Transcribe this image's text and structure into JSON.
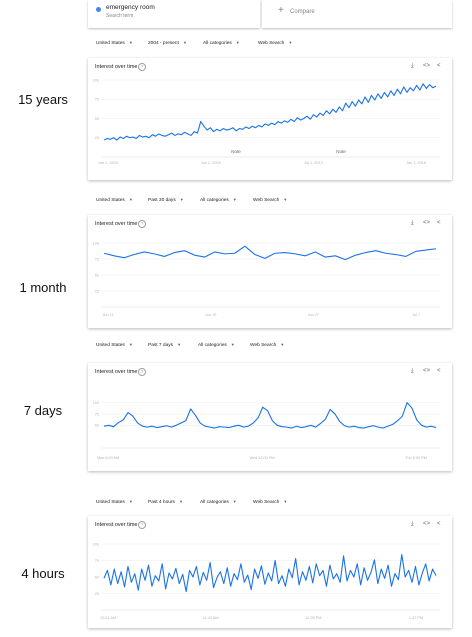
{
  "colors": {
    "series": "#1a73e8",
    "accent_dot": "#4285f4"
  },
  "search_term": {
    "name": "emergency room",
    "subtitle": "Search term",
    "compare_label": "Compare",
    "plus_icon": "plus-icon"
  },
  "panels": [
    {
      "label": "15 years",
      "filters": [
        "United States",
        "2004 - present",
        "All categories",
        "Web Search"
      ],
      "title": "Interest over time",
      "notes": [
        "Note",
        "Note"
      ],
      "y_ticks": [
        "100",
        "75",
        "50",
        "25"
      ],
      "x_ticks": [
        "Jan 1, 2004",
        "Jan 1, 2009",
        "Jul 1, 2013",
        "Jan 1, 2018"
      ]
    },
    {
      "label": "1 month",
      "filters": [
        "United States",
        "Past 30 days",
        "All categories",
        "Web Search"
      ],
      "title": "Interest over time",
      "y_ticks": [
        "100",
        "75",
        "50",
        "25"
      ],
      "x_ticks": [
        "Jun 11",
        "Jun 19",
        "Jun 27",
        "Jul 7"
      ]
    },
    {
      "label": "7 days",
      "filters": [
        "United States",
        "Past 7 days",
        "All categories",
        "Web Search"
      ],
      "title": "Interest over time",
      "y_ticks": [
        "100",
        "75",
        "50"
      ],
      "x_ticks": [
        "Mon 6:00 AM",
        "Wed 12:00 PM",
        "Thu 5:00 PM"
      ]
    },
    {
      "label": "4 hours",
      "filters": [
        "United States",
        "Past 4 hours",
        "All categories",
        "Web Search"
      ],
      "title": "Interest over time",
      "y_ticks": [
        "100",
        "75",
        "50",
        "25"
      ],
      "x_ticks": [
        "10:51 AM",
        "11:43 AM",
        "12:39 PM",
        "1:37 PM"
      ]
    }
  ],
  "chart_data": [
    {
      "type": "line",
      "title": "Interest over time",
      "ylim": [
        0,
        100
      ],
      "series": [
        {
          "values": [
            22,
            24,
            23,
            25,
            22,
            26,
            24,
            27,
            25,
            26,
            24,
            28,
            26,
            27,
            25,
            29,
            27,
            30,
            28,
            27,
            29,
            31,
            28,
            30,
            29,
            32,
            30,
            28,
            33,
            31,
            46,
            40,
            35,
            38,
            33,
            36,
            34,
            37,
            35,
            36,
            38,
            34,
            37,
            36,
            39,
            37,
            40,
            38,
            41,
            39,
            43,
            41,
            44,
            42,
            46,
            44,
            47,
            45,
            49,
            46,
            51,
            48,
            50,
            53,
            49,
            55,
            52,
            57,
            54,
            60,
            56,
            62,
            58,
            65,
            60,
            70,
            64,
            72,
            66,
            74,
            69,
            78,
            71,
            80,
            74,
            82,
            76,
            84,
            78,
            86,
            80,
            88,
            82,
            91,
            84,
            90,
            86,
            93,
            87,
            95,
            89,
            94,
            90,
            92
          ]
        }
      ]
    },
    {
      "type": "line",
      "title": "Interest over time",
      "ylim": [
        0,
        100
      ],
      "series": [
        {
          "values": [
            84,
            80,
            77,
            82,
            86,
            83,
            79,
            85,
            88,
            81,
            78,
            86,
            83,
            84,
            95,
            82,
            76,
            84,
            85,
            83,
            80,
            86,
            78,
            80,
            74,
            81,
            85,
            88,
            84,
            82,
            79,
            87,
            89,
            91
          ]
        }
      ]
    },
    {
      "type": "line",
      "title": "Interest over time",
      "ylim": [
        0,
        130
      ],
      "series": [
        {
          "values": [
            48,
            50,
            47,
            56,
            62,
            78,
            70,
            55,
            48,
            46,
            48,
            45,
            47,
            49,
            46,
            50,
            55,
            60,
            86,
            72,
            55,
            48,
            46,
            44,
            47,
            46,
            45,
            48,
            50,
            46,
            48,
            55,
            66,
            90,
            82,
            60,
            50,
            47,
            46,
            44,
            48,
            45,
            47,
            50,
            46,
            54,
            63,
            85,
            75,
            58,
            49,
            46,
            48,
            45,
            44,
            47,
            49,
            46,
            44,
            48,
            52,
            60,
            70,
            100,
            88,
            62,
            50,
            46,
            48,
            45
          ]
        }
      ]
    },
    {
      "type": "line",
      "title": "Interest over time",
      "ylim": [
        0,
        100
      ],
      "series": [
        {
          "values": [
            48,
            60,
            38,
            62,
            40,
            58,
            35,
            66,
            42,
            55,
            30,
            62,
            45,
            68,
            36,
            52,
            44,
            70,
            32,
            56,
            47,
            63,
            40,
            54,
            28,
            60,
            50,
            66,
            38,
            57,
            45,
            72,
            34,
            49,
            58,
            40,
            64,
            36,
            55,
            46,
            70,
            42,
            53,
            31,
            62,
            48,
            67,
            39,
            56,
            44,
            75,
            40,
            52,
            36,
            62,
            49,
            78,
            38,
            58,
            45,
            66,
            41,
            70,
            52,
            60,
            36,
            68,
            47,
            55,
            42,
            82,
            44,
            60,
            50,
            70,
            38,
            64,
            45,
            57,
            76,
            40,
            62,
            48,
            68,
            36,
            55,
            46,
            84,
            50,
            60,
            42,
            66,
            38,
            56,
            70,
            44,
            62,
            52
          ]
        }
      ]
    }
  ]
}
